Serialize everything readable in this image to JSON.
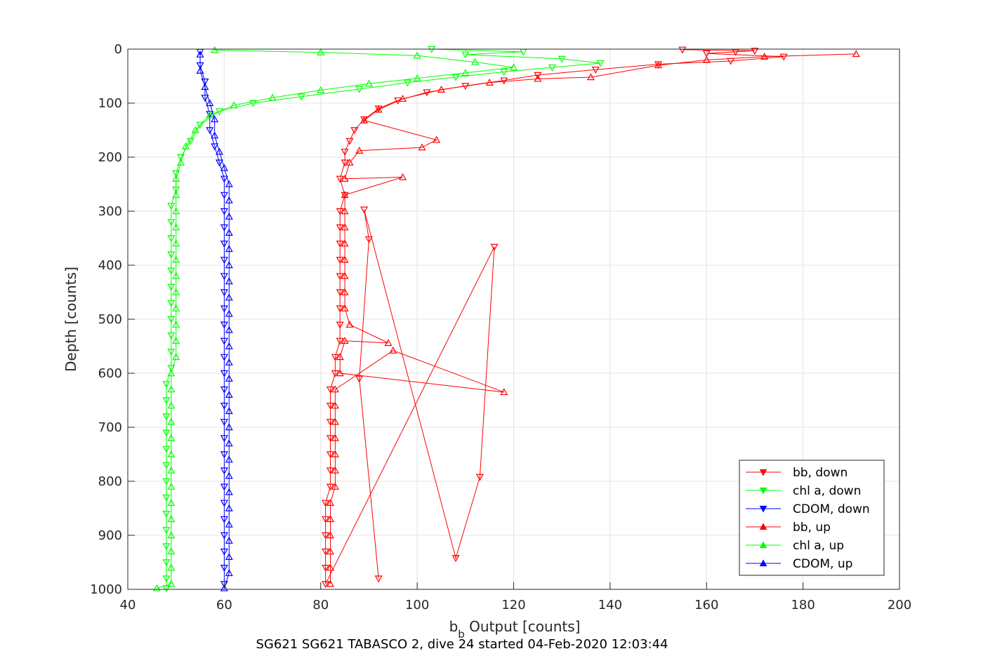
{
  "chart_data": {
    "type": "scatter",
    "xlabel_main": "b",
    "xlabel_sub": "b",
    "xlabel_rest": " Output [counts]",
    "ylabel": "Depth [counts]",
    "caption": "SG621 SG621 TABASCO 2, dive 24 started 04-Feb-2020 12:03:44",
    "xlim": [
      40,
      200
    ],
    "ylim": [
      0,
      1000
    ],
    "y_reversed": true,
    "grid": true,
    "legend_placement": "bottom-right",
    "xticks": [
      40,
      60,
      80,
      100,
      120,
      140,
      160,
      180,
      200
    ],
    "yticks": [
      0,
      100,
      200,
      300,
      400,
      500,
      600,
      700,
      800,
      900,
      1000
    ],
    "series": [
      {
        "name": "bb, down",
        "color": "#ff0000",
        "marker": "triangle-down",
        "points": [
          [
            155,
            1
          ],
          [
            170,
            3
          ],
          [
            166,
            5
          ],
          [
            160,
            8
          ],
          [
            176,
            14
          ],
          [
            165,
            22
          ],
          [
            150,
            28
          ],
          [
            137,
            38
          ],
          [
            125,
            48
          ],
          [
            118,
            58
          ],
          [
            110,
            68
          ],
          [
            102,
            80
          ],
          [
            96,
            95
          ],
          [
            92,
            110
          ],
          [
            89,
            130
          ],
          [
            87,
            150
          ],
          [
            86,
            170
          ],
          [
            85,
            190
          ],
          [
            85,
            210
          ],
          [
            84,
            240
          ],
          [
            85,
            270
          ],
          [
            84,
            300
          ],
          [
            84,
            330
          ],
          [
            84,
            360
          ],
          [
            84,
            390
          ],
          [
            84,
            420
          ],
          [
            84,
            450
          ],
          [
            84,
            480
          ],
          [
            84,
            510
          ],
          [
            84,
            540
          ],
          [
            83,
            570
          ],
          [
            83,
            600
          ],
          [
            82,
            630
          ],
          [
            82,
            660
          ],
          [
            82,
            690
          ],
          [
            82,
            720
          ],
          [
            82,
            750
          ],
          [
            82,
            780
          ],
          [
            82,
            810
          ],
          [
            81,
            840
          ],
          [
            81,
            870
          ],
          [
            81,
            900
          ],
          [
            81,
            930
          ],
          [
            81,
            960
          ],
          [
            81,
            990
          ],
          [
            116,
            366
          ],
          [
            113,
            792
          ],
          [
            108,
            942
          ],
          [
            89,
            297
          ],
          [
            90,
            352
          ],
          [
            88,
            610
          ],
          [
            92,
            980
          ]
        ]
      },
      {
        "name": "chl a, down",
        "color": "#00ff00",
        "marker": "triangle-down",
        "points": [
          [
            103,
            0
          ],
          [
            122,
            5
          ],
          [
            110,
            10
          ],
          [
            130,
            18
          ],
          [
            138,
            26
          ],
          [
            128,
            34
          ],
          [
            118,
            42
          ],
          [
            108,
            52
          ],
          [
            98,
            62
          ],
          [
            88,
            74
          ],
          [
            76,
            88
          ],
          [
            66,
            100
          ],
          [
            59,
            115
          ],
          [
            55,
            140
          ],
          [
            53,
            170
          ],
          [
            51,
            200
          ],
          [
            50,
            230
          ],
          [
            50,
            260
          ],
          [
            49,
            290
          ],
          [
            49,
            320
          ],
          [
            49,
            350
          ],
          [
            49,
            380
          ],
          [
            49,
            410
          ],
          [
            49,
            440
          ],
          [
            49,
            470
          ],
          [
            49,
            500
          ],
          [
            49,
            530
          ],
          [
            49,
            560
          ],
          [
            49,
            590
          ],
          [
            48,
            620
          ],
          [
            48,
            650
          ],
          [
            48,
            680
          ],
          [
            48,
            710
          ],
          [
            48,
            740
          ],
          [
            48,
            770
          ],
          [
            48,
            800
          ],
          [
            48,
            830
          ],
          [
            48,
            860
          ],
          [
            48,
            890
          ],
          [
            48,
            920
          ],
          [
            48,
            950
          ],
          [
            48,
            980
          ],
          [
            48,
            998
          ]
        ]
      },
      {
        "name": "CDOM, down",
        "color": "#0000ff",
        "marker": "triangle-down",
        "points": [
          [
            55,
            5
          ],
          [
            55,
            30
          ],
          [
            56,
            60
          ],
          [
            56,
            90
          ],
          [
            57,
            120
          ],
          [
            57,
            150
          ],
          [
            58,
            180
          ],
          [
            59,
            210
          ],
          [
            60,
            240
          ],
          [
            60,
            270
          ],
          [
            60,
            300
          ],
          [
            60,
            330
          ],
          [
            60,
            360
          ],
          [
            60,
            390
          ],
          [
            60,
            420
          ],
          [
            60,
            450
          ],
          [
            60,
            480
          ],
          [
            60,
            510
          ],
          [
            60,
            540
          ],
          [
            60,
            570
          ],
          [
            60,
            600
          ],
          [
            60,
            630
          ],
          [
            60,
            660
          ],
          [
            60,
            690
          ],
          [
            60,
            720
          ],
          [
            60,
            750
          ],
          [
            60,
            780
          ],
          [
            60,
            810
          ],
          [
            60,
            840
          ],
          [
            60,
            870
          ],
          [
            60,
            900
          ],
          [
            60,
            930
          ],
          [
            60,
            960
          ],
          [
            60,
            990
          ]
        ]
      },
      {
        "name": "bb, up",
        "color": "#ff0000",
        "marker": "triangle-up",
        "points": [
          [
            191,
            9
          ],
          [
            172,
            14
          ],
          [
            160,
            20
          ],
          [
            150,
            30
          ],
          [
            136,
            52
          ],
          [
            125,
            55
          ],
          [
            115,
            62
          ],
          [
            105,
            75
          ],
          [
            97,
            92
          ],
          [
            92,
            112
          ],
          [
            89,
            132
          ],
          [
            104,
            168
          ],
          [
            101,
            182
          ],
          [
            88,
            188
          ],
          [
            86,
            210
          ],
          [
            85,
            240
          ],
          [
            97,
            237
          ],
          [
            85,
            270
          ],
          [
            85,
            300
          ],
          [
            85,
            330
          ],
          [
            85,
            360
          ],
          [
            85,
            390
          ],
          [
            85,
            420
          ],
          [
            85,
            450
          ],
          [
            85,
            480
          ],
          [
            86,
            510
          ],
          [
            94,
            544
          ],
          [
            85,
            540
          ],
          [
            84,
            570
          ],
          [
            84,
            600
          ],
          [
            118,
            635
          ],
          [
            95,
            558
          ],
          [
            83,
            630
          ],
          [
            83,
            660
          ],
          [
            83,
            690
          ],
          [
            83,
            720
          ],
          [
            83,
            750
          ],
          [
            83,
            780
          ],
          [
            83,
            810
          ],
          [
            82,
            840
          ],
          [
            82,
            870
          ],
          [
            82,
            900
          ],
          [
            82,
            930
          ],
          [
            82,
            960
          ],
          [
            82,
            990
          ]
        ]
      },
      {
        "name": "chl a, up",
        "color": "#00ff00",
        "marker": "triangle-up",
        "points": [
          [
            58,
            2
          ],
          [
            80,
            6
          ],
          [
            100,
            12
          ],
          [
            112,
            24
          ],
          [
            120,
            34
          ],
          [
            110,
            44
          ],
          [
            100,
            54
          ],
          [
            90,
            64
          ],
          [
            80,
            76
          ],
          [
            70,
            90
          ],
          [
            62,
            104
          ],
          [
            57,
            122
          ],
          [
            54,
            150
          ],
          [
            52,
            180
          ],
          [
            51,
            210
          ],
          [
            50,
            240
          ],
          [
            50,
            270
          ],
          [
            50,
            300
          ],
          [
            50,
            330
          ],
          [
            50,
            360
          ],
          [
            50,
            390
          ],
          [
            50,
            420
          ],
          [
            50,
            450
          ],
          [
            50,
            480
          ],
          [
            50,
            510
          ],
          [
            50,
            540
          ],
          [
            50,
            570
          ],
          [
            49,
            600
          ],
          [
            49,
            630
          ],
          [
            49,
            660
          ],
          [
            49,
            690
          ],
          [
            49,
            720
          ],
          [
            49,
            750
          ],
          [
            49,
            780
          ],
          [
            49,
            810
          ],
          [
            49,
            840
          ],
          [
            49,
            870
          ],
          [
            49,
            900
          ],
          [
            49,
            930
          ],
          [
            49,
            960
          ],
          [
            49,
            990
          ],
          [
            46,
            998
          ]
        ]
      },
      {
        "name": "CDOM, up",
        "color": "#0000ff",
        "marker": "triangle-up",
        "points": [
          [
            55,
            10
          ],
          [
            55,
            40
          ],
          [
            56,
            70
          ],
          [
            57,
            100
          ],
          [
            58,
            130
          ],
          [
            58,
            160
          ],
          [
            59,
            190
          ],
          [
            60,
            220
          ],
          [
            61,
            250
          ],
          [
            61,
            280
          ],
          [
            61,
            310
          ],
          [
            61,
            340
          ],
          [
            61,
            370
          ],
          [
            61,
            400
          ],
          [
            61,
            430
          ],
          [
            61,
            460
          ],
          [
            61,
            490
          ],
          [
            61,
            520
          ],
          [
            61,
            550
          ],
          [
            61,
            580
          ],
          [
            61,
            610
          ],
          [
            61,
            640
          ],
          [
            61,
            670
          ],
          [
            61,
            700
          ],
          [
            61,
            730
          ],
          [
            61,
            760
          ],
          [
            61,
            790
          ],
          [
            61,
            820
          ],
          [
            61,
            850
          ],
          [
            61,
            880
          ],
          [
            61,
            910
          ],
          [
            61,
            940
          ],
          [
            61,
            970
          ],
          [
            60,
            998
          ]
        ]
      }
    ]
  }
}
